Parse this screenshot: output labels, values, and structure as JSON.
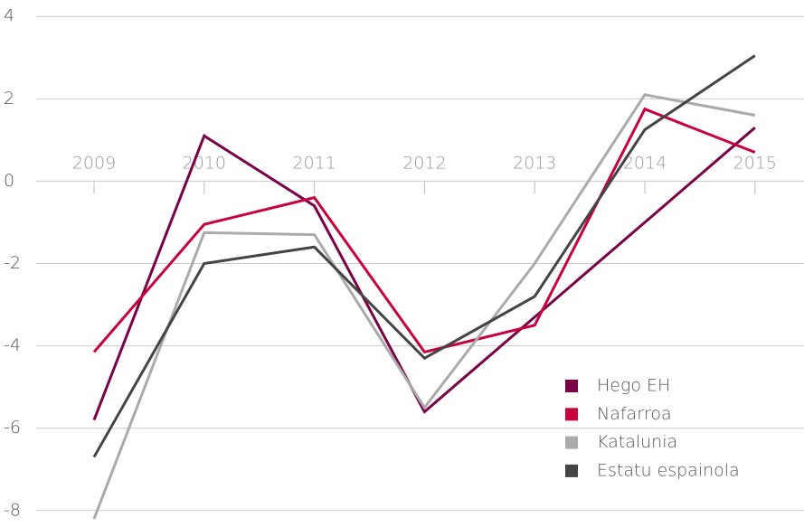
{
  "chart_data": {
    "type": "line",
    "categories": [
      "2009",
      "2010",
      "2011",
      "2012",
      "2013",
      "2014",
      "2015"
    ],
    "series": [
      {
        "name": "Hego EH",
        "color": "#7a0048",
        "values": [
          -5.8,
          1.1,
          -0.6,
          -5.6,
          -3.3,
          -1.0,
          1.3
        ]
      },
      {
        "name": "Nafarroa",
        "color": "#c8003c",
        "values": [
          -4.15,
          -1.05,
          -0.4,
          -4.15,
          -3.5,
          1.75,
          0.7
        ]
      },
      {
        "name": "Katalunia",
        "color": "#aaaaaa",
        "values": [
          -8.2,
          -1.25,
          -1.3,
          -5.5,
          -2.0,
          2.1,
          1.6
        ]
      },
      {
        "name": "Estatu espainola",
        "color": "#444444",
        "values": [
          -6.7,
          -2.0,
          -1.6,
          -4.3,
          -2.8,
          1.25,
          3.05
        ]
      }
    ],
    "ylim": [
      -8.4,
      4.4
    ],
    "yticks": [
      -8,
      -6,
      -4,
      -2,
      0,
      2,
      4
    ],
    "grid": true,
    "legend": "lower right"
  }
}
